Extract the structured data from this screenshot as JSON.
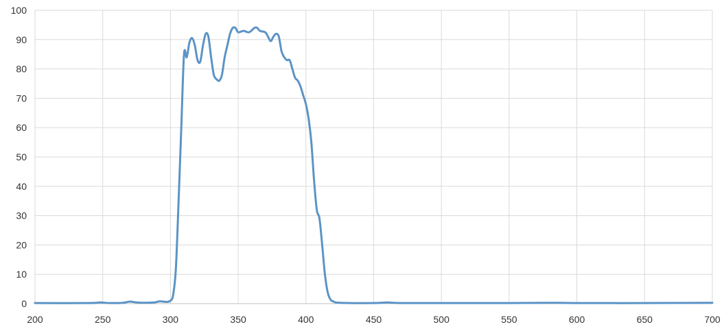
{
  "chart_data": {
    "type": "line",
    "title": "",
    "xlabel": "",
    "ylabel": "",
    "xlim": [
      200,
      700
    ],
    "ylim": [
      0,
      100
    ],
    "x_ticks": [
      "200",
      "250",
      "300",
      "350",
      "400",
      "450",
      "500",
      "550",
      "600",
      "650",
      "700"
    ],
    "y_ticks": [
      "0",
      "10",
      "20",
      "30",
      "40",
      "50",
      "60",
      "70",
      "80",
      "90",
      "100"
    ],
    "grid": true,
    "legend": "none",
    "series": [
      {
        "color": "#5b93c6",
        "points": [
          [
            200,
            0.2
          ],
          [
            240,
            0.2
          ],
          [
            248,
            0.4
          ],
          [
            255,
            0.2
          ],
          [
            265,
            0.3
          ],
          [
            270,
            0.7
          ],
          [
            275,
            0.4
          ],
          [
            280,
            0.3
          ],
          [
            288,
            0.4
          ],
          [
            292,
            0.8
          ],
          [
            297,
            0.6
          ],
          [
            300,
            1.0
          ],
          [
            302,
            3
          ],
          [
            304,
            12
          ],
          [
            306,
            35
          ],
          [
            308,
            60
          ],
          [
            310,
            85
          ],
          [
            312,
            84
          ],
          [
            314,
            89
          ],
          [
            316,
            90.5
          ],
          [
            318,
            88
          ],
          [
            320,
            83
          ],
          [
            322,
            82.5
          ],
          [
            324,
            88
          ],
          [
            326,
            92
          ],
          [
            328,
            91
          ],
          [
            330,
            84
          ],
          [
            332,
            78
          ],
          [
            334,
            76.5
          ],
          [
            336,
            76
          ],
          [
            338,
            78
          ],
          [
            340,
            84
          ],
          [
            342,
            88
          ],
          [
            344,
            92
          ],
          [
            346,
            94
          ],
          [
            348,
            94
          ],
          [
            350,
            92.5
          ],
          [
            354,
            93
          ],
          [
            358,
            92.5
          ],
          [
            362,
            94
          ],
          [
            364,
            94
          ],
          [
            366,
            93
          ],
          [
            370,
            92.5
          ],
          [
            372,
            91
          ],
          [
            374,
            89.5
          ],
          [
            376,
            91
          ],
          [
            378,
            92
          ],
          [
            380,
            91
          ],
          [
            382,
            86
          ],
          [
            384,
            84
          ],
          [
            386,
            83
          ],
          [
            388,
            83
          ],
          [
            390,
            80
          ],
          [
            392,
            77
          ],
          [
            394,
            76
          ],
          [
            396,
            74
          ],
          [
            398,
            71
          ],
          [
            400,
            68
          ],
          [
            402,
            63
          ],
          [
            404,
            55
          ],
          [
            406,
            42
          ],
          [
            408,
            32
          ],
          [
            410,
            29
          ],
          [
            412,
            20
          ],
          [
            414,
            10
          ],
          [
            416,
            4
          ],
          [
            418,
            1.5
          ],
          [
            420,
            0.8
          ],
          [
            425,
            0.3
          ],
          [
            450,
            0.2
          ],
          [
            460,
            0.4
          ],
          [
            470,
            0.2
          ],
          [
            500,
            0.2
          ],
          [
            550,
            0.2
          ],
          [
            585,
            0.3
          ],
          [
            600,
            0.2
          ],
          [
            650,
            0.2
          ],
          [
            700,
            0.3
          ]
        ]
      }
    ]
  }
}
